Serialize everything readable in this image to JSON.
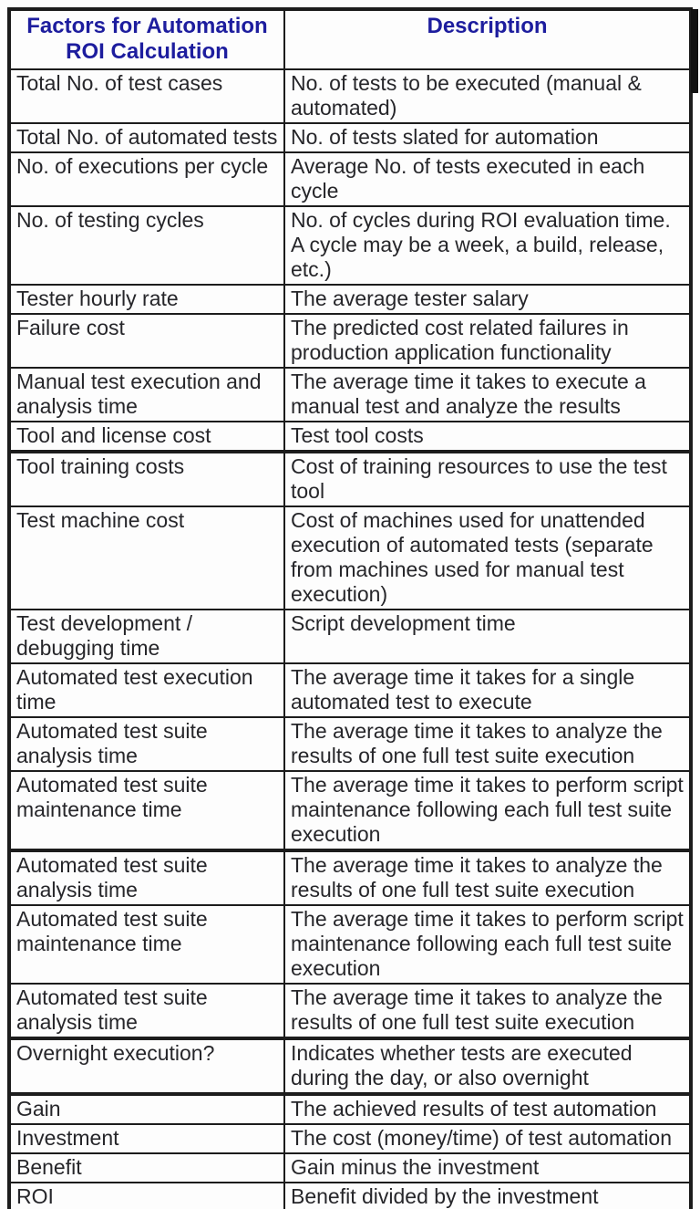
{
  "colors": {
    "header_text": "#1d1d9e",
    "body_text": "#26262a",
    "border": "#1c1c1c",
    "background": "#fdfdfd"
  },
  "table": {
    "header": {
      "factors": "Factors for Automation ROI Calculation",
      "description": "Description"
    },
    "rows": [
      {
        "factor": "Total No. of test cases",
        "description": "No. of tests to be executed (manual & automated)"
      },
      {
        "factor": "Total No. of automated tests",
        "description": "No. of tests slated for automation"
      },
      {
        "factor": "No. of executions per cycle",
        "description": "Average No. of tests executed in each cycle"
      },
      {
        "factor": "No. of testing cycles",
        "description": "No. of cycles during ROI evaluation time. A cycle may be a week, a build, release, etc.)"
      },
      {
        "factor": "Tester hourly rate",
        "description": "The average tester salary"
      },
      {
        "factor": "Failure cost",
        "description": "The predicted cost related failures in production application functionality"
      },
      {
        "factor": "Manual test execution and analysis time",
        "description": "The average time it takes to execute a manual test and analyze the results"
      },
      {
        "factor": "Tool and license cost",
        "description": "Test tool costs"
      },
      {
        "factor": "Tool training costs",
        "description": "Cost of training resources to use the test tool"
      },
      {
        "factor": "Test machine cost",
        "description": "Cost of machines used for unattended execution of automated tests (separate from machines used for manual test execution)"
      },
      {
        "factor": "Test development / debugging time",
        "description": "Script development time"
      },
      {
        "factor": "Automated test execution time",
        "description": "The average time it takes for a single automated test to execute"
      },
      {
        "factor": "Automated test suite analysis time",
        "description": "The average time it takes to analyze the results of one full test suite execution"
      },
      {
        "factor": "Automated test suite maintenance time",
        "description": "The average time it takes to perform script maintenance following each full test suite execution"
      },
      {
        "factor": "Automated test suite analysis time",
        "description": "The average time it takes to analyze the results of one full test suite execution"
      },
      {
        "factor": "Automated test suite maintenance time",
        "description": "The average time it takes to perform script maintenance following each full test suite execution"
      },
      {
        "factor": "Automated test suite analysis time",
        "description": "The average time it takes to analyze the results of one full test suite execution"
      },
      {
        "factor": "Overnight execution?",
        "description": "Indicates whether tests are executed during the day, or also overnight"
      },
      {
        "factor": "Gain",
        "description": "The achieved results of test automation"
      },
      {
        "factor": "Investment",
        "description": "The cost (money/time) of test automation"
      },
      {
        "factor": "Benefit",
        "description": "Gain minus the investment"
      },
      {
        "factor": "ROI",
        "description": "Benefit divided by the investment"
      }
    ]
  }
}
